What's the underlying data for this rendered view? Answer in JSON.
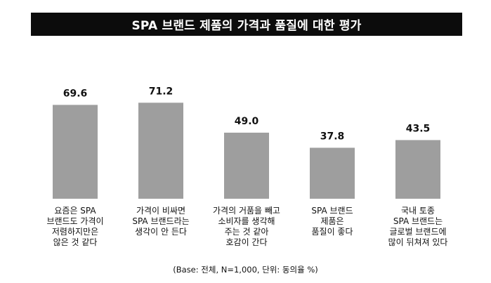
{
  "chart_data": {
    "type": "bar",
    "title": "SPA 브랜드 제품의 가격과 품질에 대한 평가",
    "categories": [
      [
        "요즘은 SPA",
        "브랜드도 가격이",
        "저렴하지만은",
        "않은 것 같다"
      ],
      [
        "가격이 비싸면",
        "SPA 브랜드라는",
        "생각이 안 든다"
      ],
      [
        "가격의 거품을 빼고",
        "소비자를 생각해",
        "주는 것 같아",
        "호감이 간다"
      ],
      [
        "SPA 브랜드",
        "제품은",
        "품질이 좋다"
      ],
      [
        "국내 토종",
        "SPA 브랜드는",
        "글로벌 브랜드에",
        "많이 뒤쳐져 있다"
      ]
    ],
    "values": [
      69.6,
      71.2,
      49.0,
      37.8,
      43.5
    ],
    "value_labels": [
      "69.6",
      "71.2",
      "49.0",
      "37.8",
      "43.5"
    ],
    "bar_color": "#9e9e9e",
    "ylim": [
      0,
      100
    ],
    "grid": false,
    "note": "(Base: 전체, N=1,000, 단위: 동의율 %)"
  }
}
